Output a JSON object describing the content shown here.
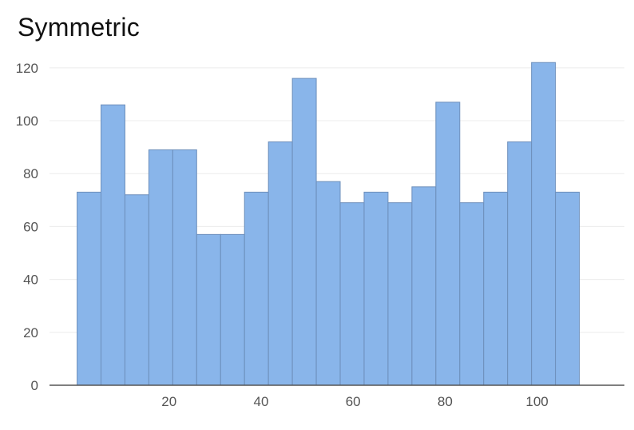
{
  "chart_data": {
    "type": "bar",
    "title": "Symmetric",
    "xlabel": "",
    "ylabel": "",
    "bin_edges": [
      0,
      5.2,
      10.4,
      15.6,
      20.8,
      26,
      31.2,
      36.4,
      41.6,
      46.8,
      52,
      57.2,
      62.4,
      67.6,
      72.8,
      78,
      83.2,
      88.4,
      93.6,
      98.8,
      104,
      109.2
    ],
    "values": [
      73,
      106,
      72,
      89,
      89,
      57,
      57,
      73,
      92,
      116,
      77,
      69,
      73,
      69,
      75,
      107,
      69,
      73,
      92,
      122,
      73
    ],
    "xlim": [
      -6,
      119
    ],
    "ylim": [
      0,
      126
    ],
    "x_ticks": [
      20,
      40,
      60,
      80,
      100
    ],
    "y_ticks": [
      0,
      20,
      40,
      60,
      80,
      100,
      120
    ],
    "grid": true,
    "colors": {
      "bar_fill": "#89b5ea",
      "bar_stroke": "#6d8fbb",
      "grid": "#ececec",
      "axis": "#555555"
    }
  }
}
